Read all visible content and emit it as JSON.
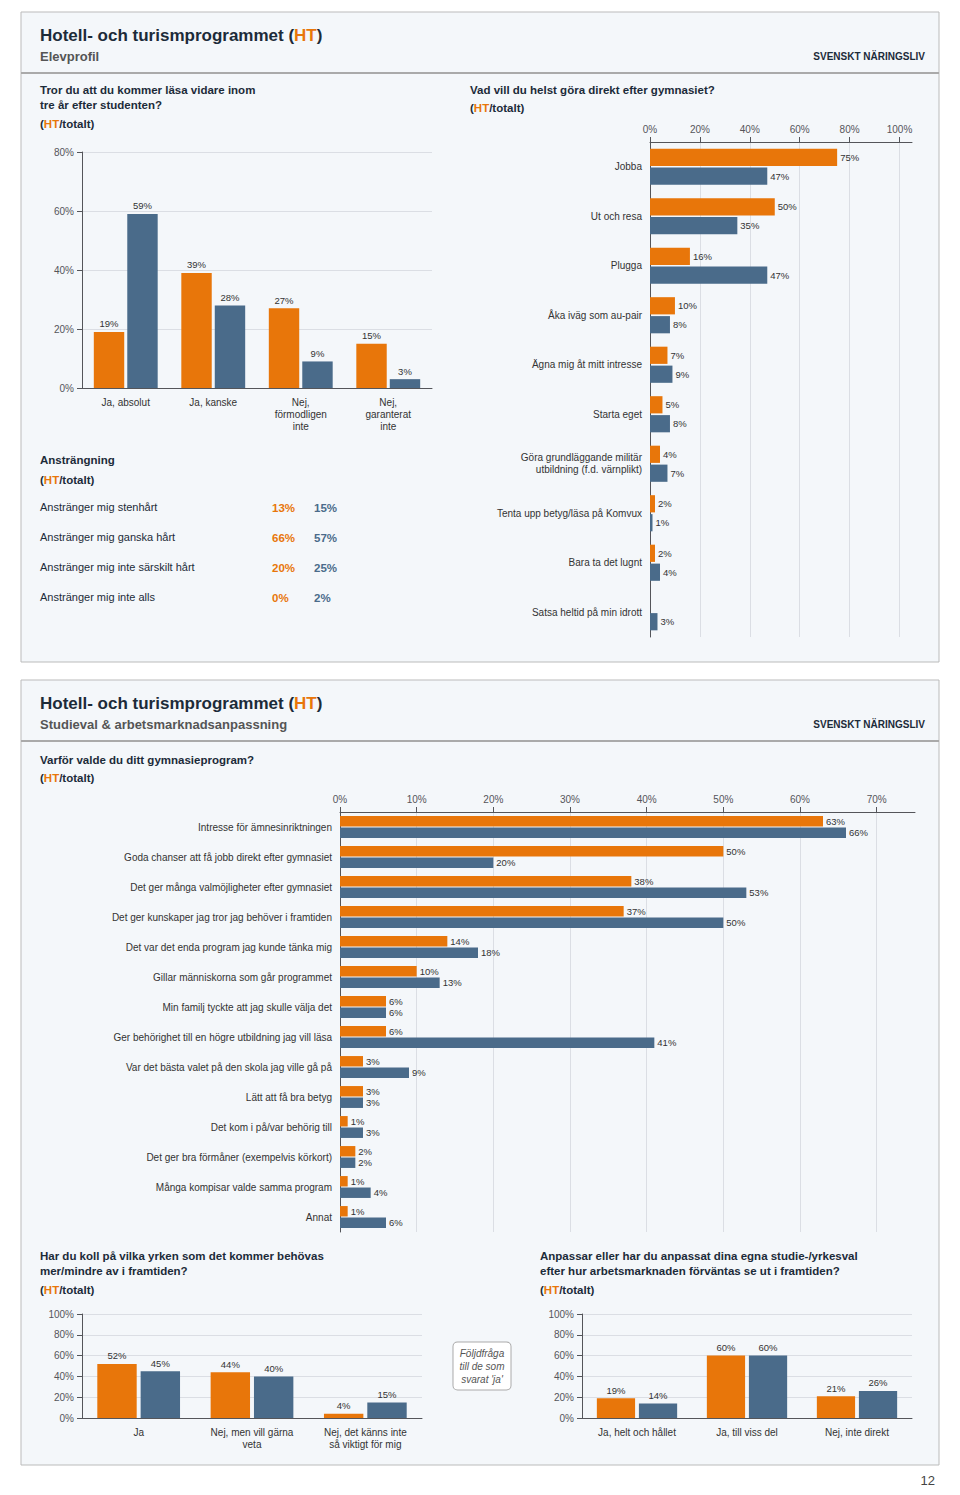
{
  "page": {
    "sections": [
      {
        "title": "Hotell- och turismprogrammet (HT)",
        "subtitle": "Elevprofil"
      },
      {
        "title": "Hotell- och turismprogrammet (HT)",
        "subtitle": "Studieval & arbetsmarknadsanpassning"
      }
    ],
    "logo": "SVENSKT NÄRINGSLIV",
    "page_number": "12"
  },
  "chart_data": [
    {
      "type": "bar",
      "title": "Tror du att du kommer läsa vidare inom\ntre år efter studenten?",
      "subtitle": "(HT/totalt)",
      "categories": [
        "Ja, absolut",
        "Ja, kanske",
        "Nej,\nförmodligen\ninte",
        "Nej,\ngaranterat\ninte"
      ],
      "series": [
        {
          "name": "HT",
          "color": "#E8760A",
          "values": [
            19,
            39,
            27,
            15
          ],
          "value_labels": [
            "19%",
            "39%",
            "27%",
            "15%"
          ]
        },
        {
          "name": "totalt",
          "color": "#4A6B8A",
          "values": [
            59,
            28,
            9,
            3
          ],
          "value_labels": [
            "59%",
            "28%",
            "9%",
            "3%"
          ]
        }
      ],
      "ylim": [
        0,
        80
      ],
      "yticks": [
        {
          "value": 0,
          "label": "0%"
        },
        {
          "value": 20,
          "label": "20%"
        },
        {
          "value": 40,
          "label": "40%"
        },
        {
          "value": 60,
          "label": "60%"
        },
        {
          "value": 80,
          "label": "80%"
        }
      ],
      "grid": true,
      "data_labels": true
    },
    {
      "type": "bar",
      "orientation": "horizontal",
      "title": "Vad vill du helst göra direkt efter gymnasiet?",
      "subtitle": "(HT/totalt)",
      "categories": [
        "Jobba",
        "Ut och resa",
        "Plugga",
        "Åka iväg som au-pair",
        "Ägna mig åt mitt intresse",
        "Starta eget",
        "Göra grundläggande militär\nutbildning (f.d. värnplikt)",
        "Tenta upp betyg/läsa på Komvux",
        "Bara ta det lugnt",
        "Satsa heltid på min idrott"
      ],
      "series": [
        {
          "name": "HT",
          "color": "#E8760A",
          "values": [
            75,
            50,
            16,
            10,
            7,
            5,
            4,
            2,
            2,
            0
          ],
          "value_labels": [
            "75%",
            "50%",
            "16%",
            "10%",
            "7%",
            "5%",
            "4%",
            "2%",
            "2%",
            null
          ]
        },
        {
          "name": "totalt",
          "color": "#4A6B8A",
          "values": [
            47,
            35,
            47,
            8,
            9,
            8,
            7,
            1,
            4,
            3
          ],
          "value_labels": [
            "47%",
            "35%",
            "47%",
            "8%",
            "9%",
            "8%",
            "7%",
            "1%",
            "4%",
            "3%"
          ]
        }
      ],
      "xlim": [
        0,
        105
      ],
      "xticks": [
        {
          "value": 0,
          "label": "0%"
        },
        {
          "value": 20,
          "label": "20%"
        },
        {
          "value": 40,
          "label": "40%"
        },
        {
          "value": 60,
          "label": "60%"
        },
        {
          "value": 80,
          "label": "80%"
        },
        {
          "value": 100,
          "label": "100%"
        }
      ],
      "grid": true,
      "data_labels": true
    },
    {
      "type": "table",
      "title": "Ansträngning",
      "subtitle": "(HT/totalt)",
      "categories": [
        "Anstränger mig stenhårt",
        "Anstränger mig ganska hårt",
        "Anstränger mig inte särskilt hårt",
        "Anstränger mig inte alls"
      ],
      "series": [
        {
          "name": "HT",
          "color": "#E8760A",
          "values": [
            13,
            66,
            20,
            0
          ],
          "value_labels": [
            "13%",
            "66%",
            "20%",
            "0%"
          ]
        },
        {
          "name": "totalt",
          "color": "#4A6B8A",
          "values": [
            15,
            57,
            25,
            2
          ],
          "value_labels": [
            "15%",
            "57%",
            "25%",
            "2%"
          ]
        }
      ],
      "data_labels": true
    },
    {
      "type": "bar",
      "orientation": "horizontal",
      "title": "Varför valde du ditt gymnasieprogram?",
      "subtitle": "(HT/totalt)",
      "categories": [
        "Intresse för ämnesinriktningen",
        "Goda chanser att få jobb direkt efter gymnasiet",
        "Det ger många valmöjligheter efter gymnasiet",
        "Det ger kunskaper jag tror jag behöver i framtiden",
        "Det var det enda program jag kunde tänka mig",
        "Gillar människorna som går programmet",
        "Min familj tyckte att jag skulle välja det",
        "Ger behörighet till en högre utbildning jag vill läsa",
        "Var det bästa valet på den skola jag ville gå på",
        "Lätt att få bra betyg",
        "Det kom i på/var behörig till",
        "Det ger bra förmåner (exempelvis körkort)",
        "Många kompisar valde samma program",
        "Annat"
      ],
      "series": [
        {
          "name": "HT",
          "color": "#E8760A",
          "values": [
            63,
            50,
            38,
            37,
            14,
            10,
            6,
            6,
            3,
            3,
            1,
            2,
            1,
            1
          ],
          "value_labels": [
            "63%",
            "50%",
            "38%",
            "37%",
            "14%",
            "10%",
            "6%",
            "6%",
            "3%",
            "3%",
            "1%",
            "2%",
            "1%",
            "1%"
          ]
        },
        {
          "name": "totalt",
          "color": "#4A6B8A",
          "values": [
            66,
            20,
            53,
            50,
            18,
            13,
            6,
            41,
            9,
            3,
            3,
            2,
            4,
            6
          ],
          "value_labels": [
            "66%",
            "20%",
            "53%",
            "50%",
            "18%",
            "13%",
            "6%",
            "41%",
            "9%",
            "3%",
            "3%",
            "2%",
            "4%",
            "6%"
          ]
        }
      ],
      "xlim": [
        0,
        75
      ],
      "xticks": [
        {
          "value": 0,
          "label": "0%"
        },
        {
          "value": 10,
          "label": "10%"
        },
        {
          "value": 20,
          "label": "20%"
        },
        {
          "value": 30,
          "label": "30%"
        },
        {
          "value": 40,
          "label": "40%"
        },
        {
          "value": 50,
          "label": "50%"
        },
        {
          "value": 60,
          "label": "60%"
        },
        {
          "value": 70,
          "label": "70%"
        }
      ],
      "grid": true,
      "data_labels": true
    },
    {
      "type": "bar",
      "title": "Har du koll på vilka yrken som det kommer behövas\nmer/mindre av i framtiden?",
      "subtitle": "(HT/totalt)",
      "categories": [
        "Ja",
        "Nej, men vill gärna\nveta",
        "Nej, det känns inte\nså viktigt för mig"
      ],
      "series": [
        {
          "name": "HT",
          "color": "#E8760A",
          "values": [
            52,
            44,
            4
          ],
          "value_labels": [
            "52%",
            "44%",
            "4%"
          ]
        },
        {
          "name": "totalt",
          "color": "#4A6B8A",
          "values": [
            45,
            40,
            15
          ],
          "value_labels": [
            "45%",
            "40%",
            "15%"
          ]
        }
      ],
      "ylim": [
        0,
        100
      ],
      "yticks": [
        {
          "value": 0,
          "label": "0%"
        },
        {
          "value": 20,
          "label": "20%"
        },
        {
          "value": 40,
          "label": "40%"
        },
        {
          "value": 60,
          "label": "60%"
        },
        {
          "value": 80,
          "label": "80%"
        },
        {
          "value": 100,
          "label": "100%"
        }
      ],
      "grid": true,
      "data_labels": true
    },
    {
      "type": "bar",
      "title": "Anpassar eller har du anpassat dina egna studie-/yrkesval\nefter hur arbetsmarknaden förväntas se ut i framtiden?",
      "subtitle": "(HT/totalt)",
      "categories": [
        "Ja, helt och hållet",
        "Ja, till viss del",
        "Nej, inte direkt"
      ],
      "series": [
        {
          "name": "HT",
          "color": "#E8760A",
          "values": [
            19,
            60,
            21
          ],
          "value_labels": [
            "19%",
            "60%",
            "21%"
          ]
        },
        {
          "name": "totalt",
          "color": "#4A6B8A",
          "values": [
            14,
            60,
            26
          ],
          "value_labels": [
            "14%",
            "60%",
            "26%"
          ]
        }
      ],
      "ylim": [
        0,
        100
      ],
      "yticks": [
        {
          "value": 0,
          "label": "0%"
        },
        {
          "value": 20,
          "label": "20%"
        },
        {
          "value": 40,
          "label": "40%"
        },
        {
          "value": 60,
          "label": "60%"
        },
        {
          "value": 80,
          "label": "80%"
        },
        {
          "value": 100,
          "label": "100%"
        }
      ],
      "grid": true,
      "data_labels": true,
      "annotations": [
        "Följdfråga\ntill de som\nsvarat 'ja'"
      ]
    }
  ]
}
